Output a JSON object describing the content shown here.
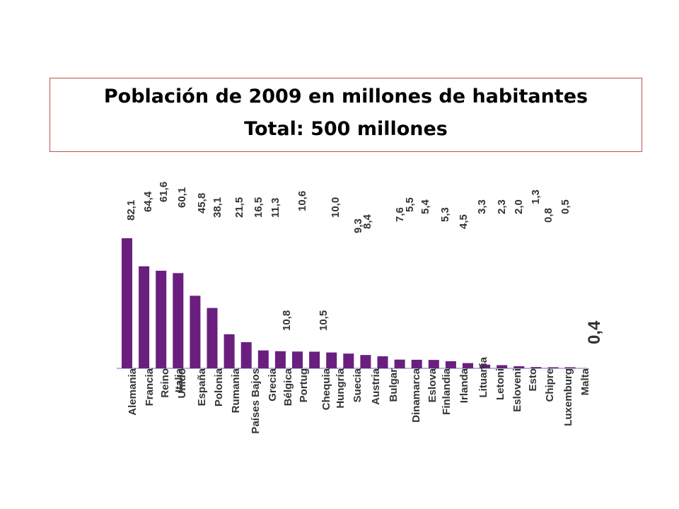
{
  "title": "Población de 2009 en millones de habitantes",
  "subtitle": "Total: 500 millones",
  "colors": {
    "bar": "#6a1f7f",
    "axis": "#a99ac8",
    "text": "#333333"
  },
  "chart_data": {
    "type": "bar",
    "title": "Población de 2009 en millones de habitantes",
    "subtitle": "Total: 500 millones",
    "xlabel": "",
    "ylabel": "",
    "grid": false,
    "ylim": [
      0,
      82.1
    ],
    "categories": [
      "Alemania",
      "Francia",
      "Reino Unido",
      "Italia",
      "España",
      "Polonia",
      "Rumania",
      "Países Bajos",
      "Grecia",
      "Bélgica",
      "Portugal",
      "Chequia",
      "Hungría",
      "Suecia",
      "Austria",
      "Bulgaria",
      "Dinamarca",
      "Eslovaquia",
      "Finlandia",
      "Irlanda",
      "Lituania",
      "Letonia",
      "Eslovenia",
      "Estonia",
      "Chipre",
      "Luxemburgo",
      "Malta"
    ],
    "category_labels": [
      "Alemania",
      "Francia",
      "Reino",
      "Unido",
      "Italia",
      "España",
      "Polonia",
      "Rumania",
      "Países Bajos",
      "Grecia",
      "Bélgica",
      "Portug",
      "Chequia",
      "Hungría",
      "Suecia",
      "Austria",
      "Bulgar",
      "Dinamarca",
      "Eslova",
      "Finlandia",
      "Irlanda",
      "Lituania",
      "Letoni",
      "Esloveni",
      "Esto",
      "Chipre",
      "Luxemburg",
      "Malta"
    ],
    "values": [
      82.1,
      64.4,
      61.6,
      60.1,
      45.8,
      38.1,
      21.5,
      16.5,
      11.3,
      10.8,
      10.6,
      10.5,
      10.0,
      9.3,
      8.4,
      7.6,
      5.5,
      5.4,
      5.3,
      4.5,
      3.3,
      2.3,
      2.0,
      1.3,
      0.8,
      0.5,
      0.4
    ],
    "value_labels": [
      "82,1",
      "64,4",
      "61,6",
      "60,1",
      "45,8",
      "38,1",
      "21,5",
      "16,5",
      "11,3",
      "10,8",
      "10,6",
      "10,5",
      "10,0",
      "9,3",
      "8,4",
      "7,6",
      "5,5",
      "5,4",
      "5,3",
      "4,5",
      "3,3",
      "2,3",
      "2,0",
      "1,3",
      "0,8",
      "0,5",
      "0,4"
    ]
  }
}
